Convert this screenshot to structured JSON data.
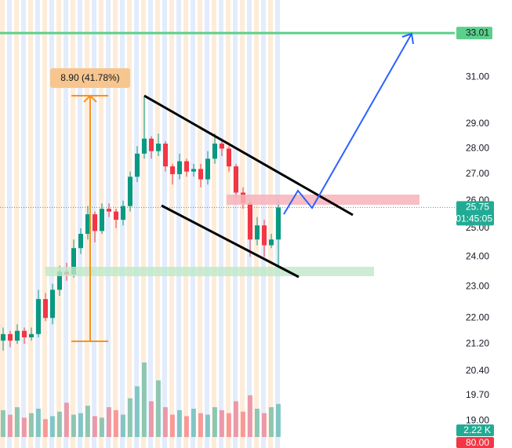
{
  "chart_data": {
    "type": "candlestick",
    "log_scale": true,
    "ylim": [
      18.28,
      34.6
    ],
    "yticks": [
      {
        "value": 31,
        "label": "31.00"
      },
      {
        "value": 29,
        "label": "29.00"
      },
      {
        "value": 28,
        "label": "28.00"
      },
      {
        "value": 27,
        "label": "27.00"
      },
      {
        "value": 26,
        "label": "26.00"
      },
      {
        "value": 25,
        "label": "25.00"
      },
      {
        "value": 24,
        "label": "24.00"
      },
      {
        "value": 23,
        "label": "23.00"
      },
      {
        "value": 22,
        "label": "22.00"
      },
      {
        "value": 21.2,
        "label": "21.20"
      },
      {
        "value": 20.4,
        "label": "20.40"
      },
      {
        "value": 19.7,
        "label": "19.70"
      },
      {
        "value": 19,
        "label": "19.00"
      }
    ],
    "open": [
      21.3,
      21.5,
      21.3,
      21.6,
      21.4,
      21.5,
      22.6,
      22.0,
      22.9,
      23.5,
      23.4,
      24.3,
      24.8,
      25.5,
      24.9,
      25.7,
      25.6,
      25.3,
      25.8,
      26.9,
      27.8,
      28.4,
      27.9,
      28.2,
      27.3,
      27.0,
      27.5,
      27.1,
      27.2,
      26.8,
      27.6,
      28.2,
      28.0,
      27.3,
      26.3,
      25.9,
      24.6,
      25.1,
      24.4,
      24.6
    ],
    "high": [
      21.7,
      21.6,
      21.8,
      21.7,
      21.7,
      22.9,
      22.8,
      23.1,
      23.7,
      23.8,
      24.6,
      25.0,
      25.8,
      25.6,
      25.9,
      25.9,
      25.7,
      26.0,
      27.1,
      28.1,
      30.2,
      28.5,
      28.6,
      28.3,
      27.4,
      27.8,
      27.6,
      27.4,
      27.4,
      27.9,
      28.6,
      28.4,
      28.1,
      27.4,
      26.5,
      26.0,
      25.4,
      25.3,
      24.8,
      26.0
    ],
    "low": [
      21.0,
      21.1,
      21.2,
      21.2,
      21.3,
      21.4,
      21.9,
      21.8,
      22.7,
      23.2,
      23.3,
      24.1,
      24.6,
      24.5,
      24.8,
      25.4,
      25.0,
      25.1,
      25.6,
      26.7,
      27.6,
      27.6,
      27.7,
      27.1,
      26.6,
      26.8,
      26.9,
      26.9,
      26.5,
      26.6,
      27.4,
      27.7,
      27.1,
      26.1,
      25.7,
      24.0,
      24.4,
      24.0,
      24.3,
      23.6
    ],
    "close": [
      21.5,
      21.3,
      21.6,
      21.4,
      21.5,
      22.6,
      22.0,
      22.9,
      23.5,
      23.4,
      24.3,
      24.8,
      25.5,
      24.9,
      25.7,
      25.6,
      25.3,
      25.8,
      26.9,
      27.8,
      28.4,
      27.9,
      28.2,
      27.3,
      27.0,
      27.5,
      27.1,
      27.2,
      26.8,
      27.6,
      28.2,
      28.0,
      27.3,
      26.3,
      25.9,
      24.6,
      25.1,
      24.4,
      24.6,
      25.75
    ],
    "volume": [
      1.8,
      1.5,
      2.0,
      1.3,
      1.6,
      1.9,
      1.2,
      1.4,
      1.7,
      2.3,
      1.5,
      1.6,
      2.1,
      1.4,
      1.3,
      2.0,
      1.8,
      1.5,
      2.6,
      3.4,
      5.0,
      2.4,
      3.8,
      2.0,
      1.5,
      1.8,
      1.4,
      1.9,
      1.6,
      1.5,
      2.0,
      1.8,
      1.6,
      2.4,
      1.7,
      2.8,
      1.9,
      1.6,
      2.0,
      2.22
    ],
    "volume_ylim": [
      0,
      6
    ],
    "volume_last_label": "2.22 K",
    "up_color": "#089981",
    "down_color": "#f23645",
    "price_line": {
      "value": 25.75,
      "label": "25.75",
      "countdown": "01:45:05",
      "color": "#22ab94"
    },
    "level": {
      "value": 33.01,
      "label": "33.01",
      "color": "#5cd08b"
    },
    "measure_label": "8.90 (41.78%)",
    "extra_label": "80.00"
  }
}
